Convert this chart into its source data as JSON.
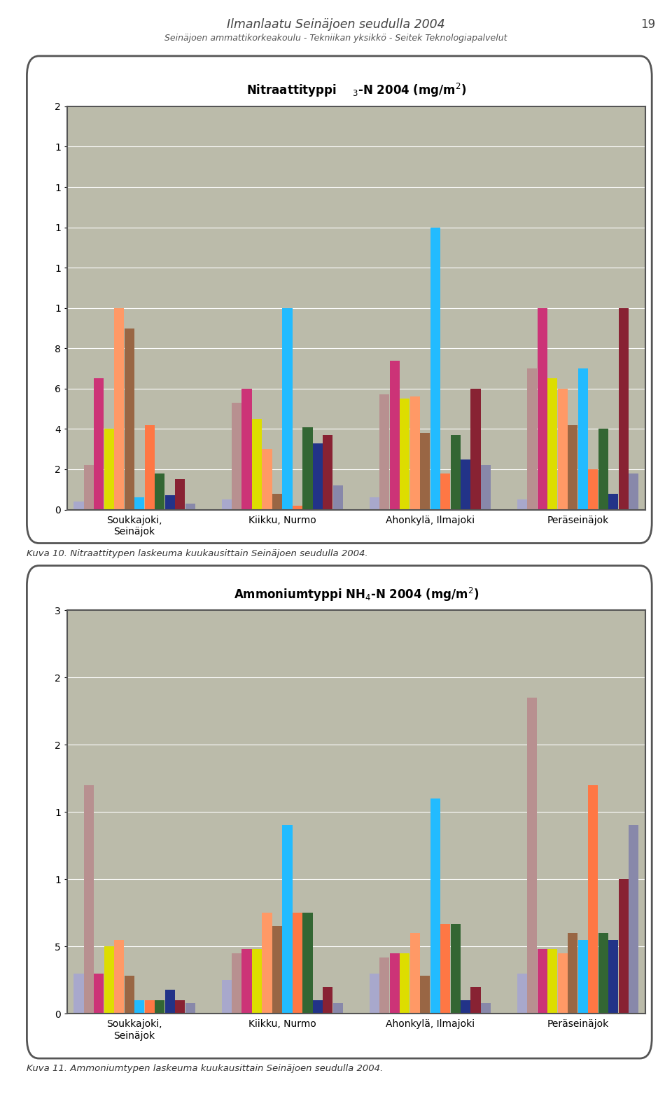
{
  "page_title": "Ilmanlaatu Seinäjoen seudulla 2004",
  "page_subtitle": "Seinäjoen ammattikorkeakoulu - Tekniikan yksikkö - Seitek Teknologiapalvelut",
  "page_number": "19",
  "caption1": "Kuva 10. Nitraattitypen laskeuma kuukausittain Seinäjoen seudulla 2004.",
  "caption2": "Kuva 11. Ammoniumtypen laskeuma kuukausittain Seinäjoen seudulla 2004.",
  "locations": [
    "Soukkajoki,\nSeinäjok",
    "Kiikku, Nurmo",
    "Ahonkylä, Ilmajoki",
    "Peräseinäjok"
  ],
  "bar_colors": [
    "#A8A8CC",
    "#B89090",
    "#CC3377",
    "#DDDD00",
    "#FF9966",
    "#996644",
    "#22BBFF",
    "#FF7744",
    "#336633",
    "#223388",
    "#882233",
    "#8888AA"
  ],
  "nitrate_data": {
    "Soukkajoki,\nSeinäjok": [
      0.04,
      0.22,
      0.65,
      0.4,
      1.0,
      0.9,
      0.06,
      0.42,
      0.18,
      0.07,
      0.15,
      0.03
    ],
    "Kiikku, Nurmo": [
      0.05,
      0.53,
      0.6,
      0.45,
      0.3,
      0.08,
      1.0,
      0.02,
      0.41,
      0.33,
      0.37,
      0.12
    ],
    "Ahonkylä, Ilmajoki": [
      0.06,
      0.57,
      0.74,
      0.55,
      0.56,
      0.38,
      1.4,
      0.18,
      0.37,
      0.25,
      0.6,
      0.22
    ],
    "Peräseinäjok": [
      0.05,
      0.7,
      1.0,
      0.65,
      0.6,
      0.42,
      0.7,
      0.2,
      0.4,
      0.08,
      1.0,
      0.18
    ]
  },
  "ammonium_data": {
    "Soukkajoki,\nSeinäjok": [
      0.3,
      1.7,
      0.3,
      0.5,
      0.55,
      0.28,
      0.1,
      0.1,
      0.1,
      0.18,
      0.1,
      0.08
    ],
    "Kiikku, Nurmo": [
      0.25,
      0.45,
      0.48,
      0.48,
      0.75,
      0.65,
      1.4,
      0.75,
      0.75,
      0.1,
      0.2,
      0.08
    ],
    "Ahonkylä, Ilmajoki": [
      0.3,
      0.42,
      0.45,
      0.45,
      0.6,
      0.28,
      1.6,
      0.67,
      0.67,
      0.1,
      0.2,
      0.08
    ],
    "Peräseinäjok": [
      0.3,
      2.35,
      0.48,
      0.48,
      0.45,
      0.6,
      0.55,
      1.7,
      0.6,
      0.55,
      1.0,
      1.4
    ]
  },
  "plot_bg_color": "#BBBBAA",
  "fig_bg_color": "#FFFFFF",
  "box_bg_color": "#FFFFFF"
}
